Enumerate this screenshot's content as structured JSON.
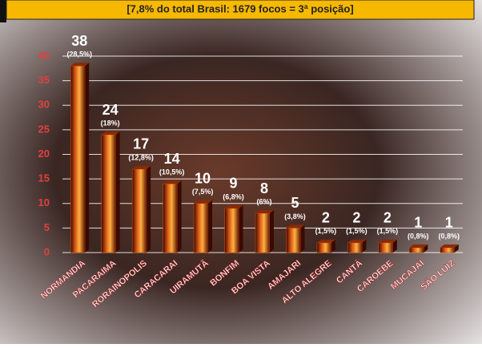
{
  "chart_data": {
    "type": "bar",
    "title": "[7,8% do total Brasil: 1679 focos = 3ª posição]",
    "categories": [
      "NORMANDIA",
      "PACARAIMA",
      "RORAINOPOLIS",
      "CARACARAI",
      "UIRAMUTÃ",
      "BONFIM",
      "BOA VISTA",
      "AMAJARI",
      "ALTO ALEGRE",
      "CANTÁ",
      "CAROEBE",
      "MUCAJAÍ",
      "SÃO LUIZ"
    ],
    "values": [
      38,
      24,
      17,
      14,
      10,
      9,
      8,
      5,
      2,
      2,
      2,
      1,
      1
    ],
    "share_labels": [
      "(28,5%)",
      "(18%)",
      "(12,8%)",
      "(10,5%)",
      "(7,5%)",
      "(6,8%)",
      "(6%)",
      "(3,8%)",
      "(1,5%)",
      "(1,5%)",
      "(1,5%)",
      "(0,8%)",
      "(0,8%)"
    ],
    "color": "#d2500f",
    "ylim": [
      0,
      40
    ],
    "yticks": [
      0,
      5,
      10,
      15,
      20,
      25,
      30,
      35,
      40
    ],
    "grid": true
  }
}
